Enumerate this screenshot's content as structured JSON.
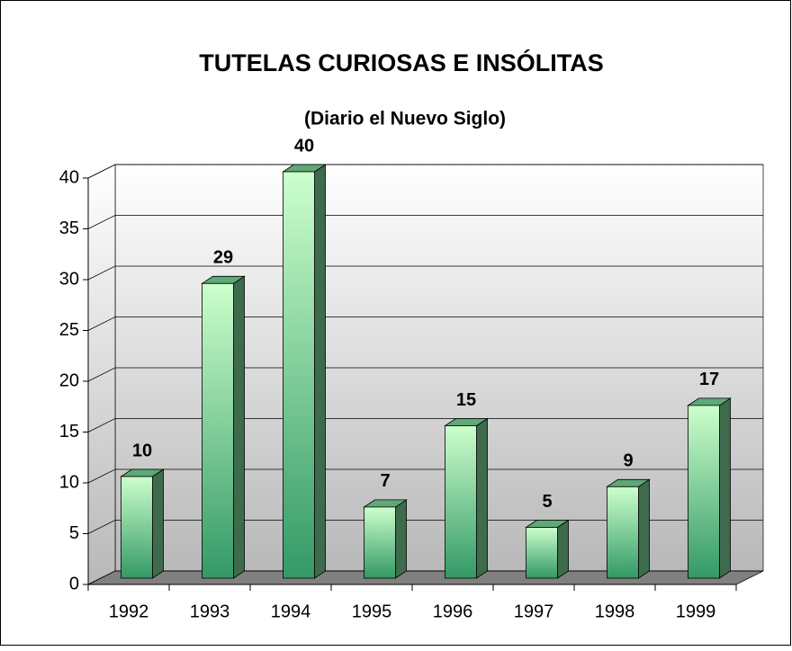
{
  "chart_data": {
    "type": "bar",
    "title": "TUTELAS CURIOSAS E INSÓLITAS",
    "subtitle": "(Diario el Nuevo Siglo)",
    "categories": [
      "1992",
      "1993",
      "1994",
      "1995",
      "1996",
      "1997",
      "1998",
      "1999"
    ],
    "values": [
      10,
      29,
      40,
      7,
      15,
      5,
      9,
      17
    ],
    "color": "#339966",
    "ylim": [
      0,
      40
    ],
    "yticks": [
      0,
      5,
      10,
      15,
      20,
      25,
      30,
      35,
      40
    ],
    "grid": true
  }
}
